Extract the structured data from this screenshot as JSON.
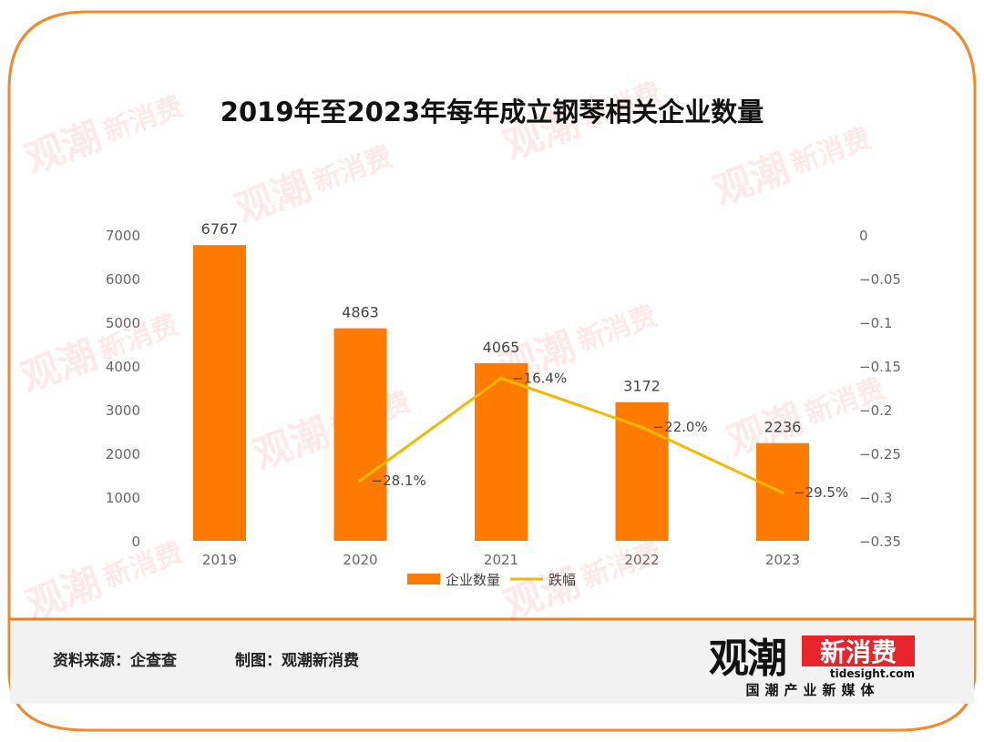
{
  "chart_data": {
    "type": "bar+line",
    "title": "2019年至2023年每年成立钢琴相关企业数量",
    "categories": [
      "2019",
      "2020",
      "2021",
      "2022",
      "2023"
    ],
    "series": [
      {
        "name": "企业数量",
        "type": "bar",
        "axis": "left",
        "color": "#FF7A00",
        "values": [
          6767,
          4863,
          4065,
          3172,
          2236
        ],
        "labels": [
          "6767",
          "4863",
          "4065",
          "3172",
          "2236"
        ]
      },
      {
        "name": "跌幅",
        "type": "line",
        "axis": "right",
        "color": "#F5B800",
        "values": [
          null,
          -0.281,
          -0.164,
          -0.22,
          -0.295
        ],
        "labels": [
          "",
          "-28.1%",
          "-16.4%",
          "-22.0%",
          "-29.5%"
        ]
      }
    ],
    "y_left": {
      "min": 0,
      "max": 7000,
      "ticks": [
        0,
        1000,
        2000,
        3000,
        4000,
        5000,
        6000,
        7000
      ],
      "tick_labels": [
        "0",
        "1000",
        "2000",
        "3000",
        "4000",
        "5000",
        "6000",
        "7000"
      ]
    },
    "y_right": {
      "min": -0.35,
      "max": 0,
      "ticks": [
        0,
        -0.05,
        -0.1,
        -0.15,
        -0.2,
        -0.25,
        -0.3,
        -0.35
      ],
      "tick_labels": [
        "0",
        "-0.05",
        "-0.1",
        "-0.15",
        "-0.2",
        "-0.25",
        "-0.3",
        "-0.35"
      ]
    },
    "legend_position": "bottom",
    "grid": false
  },
  "footer": {
    "source": "资料来源：企查查",
    "credit": "制图：观潮新消费"
  },
  "logo": {
    "main": "观潮",
    "badge": "新消费",
    "domain": "tidesight.com",
    "tagline": "国潮产业新媒体"
  },
  "colors": {
    "frame": "#F08A2A",
    "bar": "#FF7A00",
    "line": "#F5B800",
    "footer_bg": "#F2F2F2",
    "footer_rule": "#F07F1F",
    "logo_red": "#E8242C"
  }
}
